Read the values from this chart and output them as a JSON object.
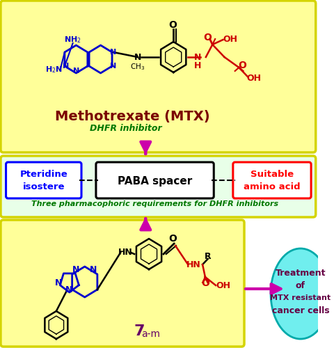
{
  "bg_color": "#ffffff",
  "box1_bg": "#ffff99",
  "box1_border": "#d4d400",
  "box2_bg": "#e8ffe8",
  "box2_border": "#d4d400",
  "box3_bg": "#ffff99",
  "box3_border": "#d4d400",
  "mtx_title": "Methotrexate (MTX)",
  "mtx_subtitle": "DHFR inhibitor",
  "paba_text": "PABA spacer",
  "pteridine_text": "Pteridine\nisostere",
  "amino_text": "Suitable\namino acid",
  "pharmacophoric_text": "Three pharmacophoric requirements for DHFR inhibitors",
  "treatment_bg": "#70eeee",
  "arrow_color": "#cc00aa",
  "pteridine_border": "#0000ff",
  "amino_border": "#ff0000",
  "pteridine_text_color": "#0000ff",
  "amino_text_color": "#ff0000",
  "mtx_title_color": "#7a0000",
  "mtx_subtitle_color": "#007700",
  "pharmacophoric_color": "#007700",
  "compound_color": "#660066",
  "blue": "#0000cc",
  "red": "#cc0000",
  "black": "#000000",
  "magenta": "#cc00aa"
}
